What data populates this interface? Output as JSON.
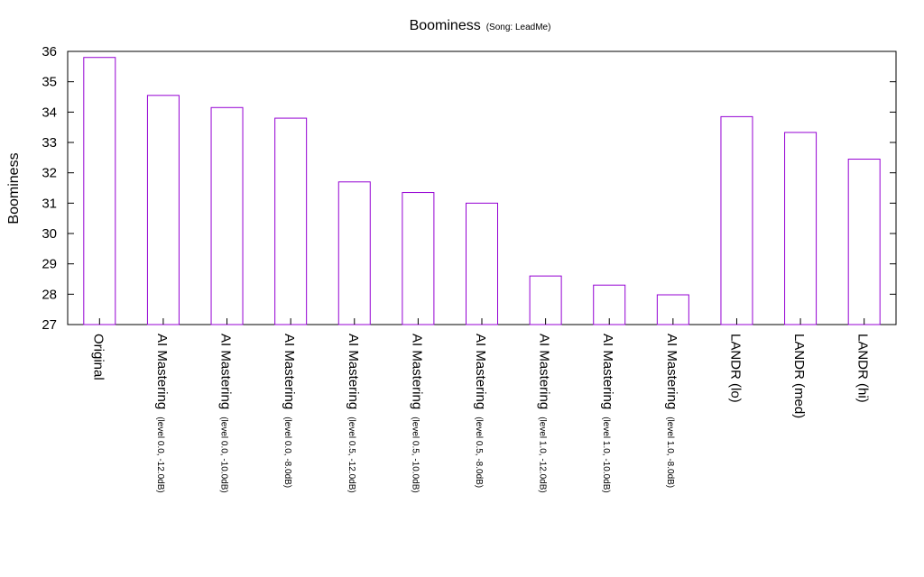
{
  "chart_data": {
    "type": "bar",
    "title": "Boominess",
    "subtitle": "(Song: LeadMe)",
    "xlabel": "",
    "ylabel": "Boominess",
    "ylim": [
      27,
      36
    ],
    "yticks": [
      27,
      28,
      29,
      30,
      31,
      32,
      33,
      34,
      35,
      36
    ],
    "grid": false,
    "legend": "none",
    "bar_color": "#9400d3",
    "categories": [
      {
        "main": "Original",
        "sub": ""
      },
      {
        "main": "AI Mastering",
        "sub": "(level 0.0, -12.0dB)"
      },
      {
        "main": "AI Mastering",
        "sub": "(level 0.0, -10.0dB)"
      },
      {
        "main": "AI Mastering",
        "sub": "(level 0.0, -8.0dB)"
      },
      {
        "main": "AI Mastering",
        "sub": "(level 0.5, -12.0dB)"
      },
      {
        "main": "AI Mastering",
        "sub": "(level 0.5, -10.0dB)"
      },
      {
        "main": "AI Mastering",
        "sub": "(level 0.5, -8.0dB)"
      },
      {
        "main": "AI Mastering",
        "sub": "(level 1.0, -12.0dB)"
      },
      {
        "main": "AI Mastering",
        "sub": "(level 1.0, -10.0dB)"
      },
      {
        "main": "AI Mastering",
        "sub": "(level 1.0, -8.0dB)"
      },
      {
        "main": "LANDR (lo)",
        "sub": ""
      },
      {
        "main": "LANDR (med)",
        "sub": ""
      },
      {
        "main": "LANDR (hi)",
        "sub": ""
      }
    ],
    "values": [
      35.8,
      34.55,
      34.15,
      33.8,
      31.7,
      31.35,
      31.0,
      28.6,
      28.3,
      27.98,
      33.85,
      33.33,
      32.45
    ]
  }
}
